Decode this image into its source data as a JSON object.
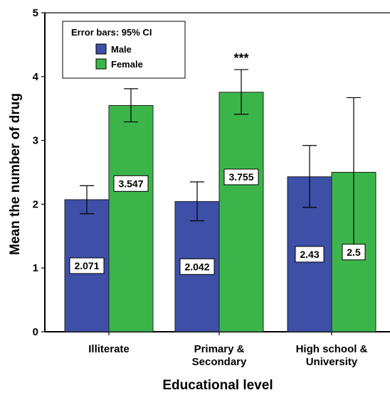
{
  "chart_data": {
    "type": "bar",
    "categories": [
      [
        "Illiterate"
      ],
      [
        "Primary &",
        "Secondary"
      ],
      [
        "High school &",
        "University"
      ]
    ],
    "series": [
      {
        "name": "Male",
        "color": "#3d4fa6",
        "values": [
          2.071,
          2.042,
          2.43
        ],
        "ci_low": [
          1.85,
          1.74,
          1.95
        ],
        "ci_high": [
          2.29,
          2.35,
          2.92
        ],
        "labels": [
          "2.071",
          "2.042",
          "2.43"
        ]
      },
      {
        "name": "Female",
        "color": "#3bb54a",
        "values": [
          3.547,
          3.755,
          2.5
        ],
        "ci_low": [
          3.29,
          3.41,
          1.33
        ],
        "ci_high": [
          3.81,
          4.11,
          3.67
        ],
        "labels": [
          "3.547",
          "3.755",
          "2.5"
        ]
      }
    ],
    "significance": [
      "***",
      "***",
      ""
    ],
    "xlabel": "Educational level",
    "ylabel": "Mean the number of drug",
    "ylim": [
      0,
      5
    ],
    "yticks": [
      "0",
      "1",
      "2",
      "3",
      "4",
      "5"
    ],
    "legend": {
      "title": "Error bars: 95% CI",
      "position": "top-left"
    },
    "grid": false
  }
}
